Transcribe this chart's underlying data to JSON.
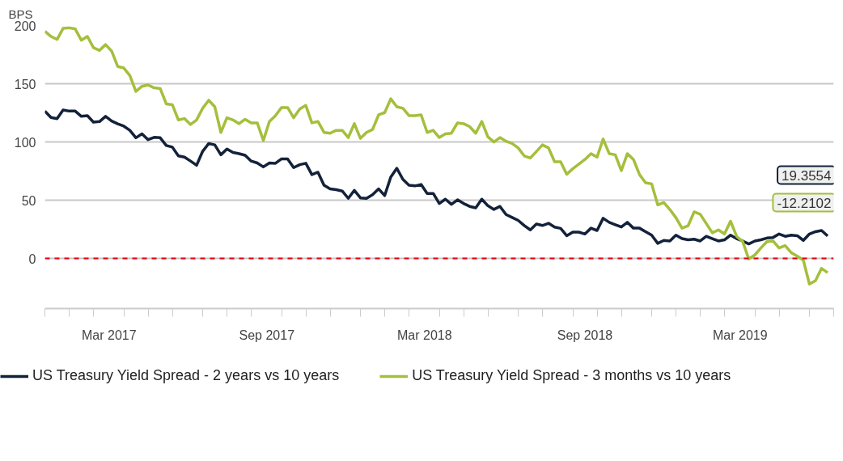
{
  "chart_data": {
    "type": "line",
    "ylabel": "BPS",
    "x": [
      "2016-12-30",
      "2017-01-06",
      "2017-01-13",
      "2017-01-20",
      "2017-01-27",
      "2017-02-03",
      "2017-02-10",
      "2017-02-17",
      "2017-02-24",
      "2017-03-03",
      "2017-03-10",
      "2017-03-17",
      "2017-03-24",
      "2017-03-31",
      "2017-04-07",
      "2017-04-14",
      "2017-04-21",
      "2017-04-28",
      "2017-05-05",
      "2017-05-12",
      "2017-05-19",
      "2017-05-26",
      "2017-06-02",
      "2017-06-09",
      "2017-06-16",
      "2017-06-23",
      "2017-06-30",
      "2017-07-07",
      "2017-07-14",
      "2017-07-21",
      "2017-07-28",
      "2017-08-04",
      "2017-08-11",
      "2017-08-18",
      "2017-08-25",
      "2017-09-01",
      "2017-09-08",
      "2017-09-15",
      "2017-09-22",
      "2017-09-29",
      "2017-10-06",
      "2017-10-13",
      "2017-10-20",
      "2017-10-27",
      "2017-11-03",
      "2017-11-10",
      "2017-11-17",
      "2017-11-24",
      "2017-12-01",
      "2017-12-08",
      "2017-12-15",
      "2017-12-22",
      "2017-12-29",
      "2018-01-05",
      "2018-01-12",
      "2018-01-19",
      "2018-01-26",
      "2018-02-02",
      "2018-02-09",
      "2018-02-16",
      "2018-02-23",
      "2018-03-02",
      "2018-03-09",
      "2018-03-16",
      "2018-03-23",
      "2018-03-30",
      "2018-04-06",
      "2018-04-13",
      "2018-04-20",
      "2018-04-27",
      "2018-05-04",
      "2018-05-11",
      "2018-05-18",
      "2018-05-25",
      "2018-06-01",
      "2018-06-08",
      "2018-06-15",
      "2018-06-22",
      "2018-06-29",
      "2018-07-06",
      "2018-07-13",
      "2018-07-20",
      "2018-07-27",
      "2018-08-03",
      "2018-08-10",
      "2018-08-17",
      "2018-08-24",
      "2018-08-31",
      "2018-09-07",
      "2018-09-14",
      "2018-09-21",
      "2018-09-28",
      "2018-10-05",
      "2018-10-12",
      "2018-10-19",
      "2018-10-26",
      "2018-11-02",
      "2018-11-09",
      "2018-11-16",
      "2018-11-23",
      "2018-11-30",
      "2018-12-07",
      "2018-12-14",
      "2018-12-21",
      "2018-12-28",
      "2019-01-04",
      "2019-01-11",
      "2019-01-18",
      "2019-01-25",
      "2019-02-01",
      "2019-02-08",
      "2019-02-15",
      "2019-02-22",
      "2019-03-01",
      "2019-03-08",
      "2019-03-15",
      "2019-03-22",
      "2019-03-29",
      "2019-04-05",
      "2019-04-12",
      "2019-04-19",
      "2019-04-26",
      "2019-05-03",
      "2019-05-10",
      "2019-05-17",
      "2019-05-24",
      "2019-05-31",
      "2019-06-07",
      "2019-06-14",
      "2019-06-21"
    ],
    "series": [
      {
        "name": "US Treasury Yield Spread - 2 years vs 10 years",
        "color": "#13223a",
        "values": [
          126.5,
          121,
          120,
          127.5,
          126.5,
          126.5,
          122,
          122.6,
          117,
          117.5,
          122,
          118,
          115.6,
          113.6,
          110,
          103.6,
          107,
          102,
          104,
          103.6,
          97,
          95.6,
          88,
          87,
          83.6,
          80,
          92,
          98.7,
          97.5,
          89,
          94,
          91,
          90,
          88.6,
          83.6,
          82,
          78.6,
          82,
          81.7,
          85.5,
          85.5,
          78,
          80.5,
          81.7,
          72,
          74,
          62.9,
          59.7,
          59,
          57.9,
          51.6,
          58.5,
          52,
          51.6,
          54.7,
          59.7,
          54,
          69.8,
          77.4,
          67.9,
          62.9,
          62.3,
          63.5,
          55.8,
          55.8,
          47.2,
          50.9,
          46.5,
          50.3,
          47.2,
          44.7,
          43.4,
          50.9,
          45.3,
          42.1,
          44.7,
          37.7,
          35.2,
          32.7,
          28.3,
          24.5,
          29.6,
          28.3,
          30.2,
          27,
          25.8,
          19.5,
          22.6,
          22.6,
          21,
          26,
          24,
          34.5,
          31,
          29,
          27,
          31,
          26,
          26,
          23,
          20,
          13,
          15.5,
          15,
          20,
          17,
          16,
          16.5,
          15,
          19,
          17,
          15,
          16,
          20,
          17,
          15,
          12.5,
          15,
          16,
          17.5,
          18,
          21,
          19,
          20,
          19.5,
          15.5,
          21,
          23,
          24,
          19.3554
        ]
      },
      {
        "name": "US Treasury Yield Spread - 3 months vs 10 years",
        "color": "#a4bf3c",
        "values": [
          195,
          190.6,
          188,
          197.5,
          198,
          197,
          187.4,
          190.6,
          181,
          178.6,
          183.6,
          178,
          164.8,
          163.5,
          157,
          143.4,
          147.8,
          149,
          146.5,
          145.9,
          132.7,
          132,
          118.9,
          120.1,
          115,
          118.9,
          128.9,
          135.8,
          130.2,
          108.2,
          120.8,
          118.9,
          115.7,
          119.5,
          116.4,
          116.4,
          101.3,
          117.6,
          122.6,
          129.6,
          129.6,
          120.8,
          128.3,
          131.4,
          116.4,
          117.6,
          108.2,
          107.5,
          110,
          110,
          103.8,
          115.7,
          103.1,
          108.2,
          110.7,
          123.3,
          125.2,
          137.1,
          130.2,
          128.9,
          122.6,
          122.6,
          123.3,
          108.2,
          110,
          103.8,
          106.9,
          107.5,
          116.4,
          115.7,
          113.2,
          107.5,
          117.6,
          104.4,
          99.9,
          103.8,
          100.6,
          98.7,
          94.9,
          88,
          86.2,
          91.8,
          97.5,
          94.9,
          83,
          83,
          72.3,
          77,
          81,
          85,
          90,
          87,
          102.5,
          90,
          89,
          75.5,
          90,
          85,
          72,
          65,
          64,
          46,
          48,
          42,
          35,
          26,
          28,
          40,
          38,
          30,
          22,
          24.5,
          21,
          32,
          19,
          14.5,
          -0.5,
          3,
          9,
          14.5,
          15,
          9,
          11,
          5,
          2,
          -1.5,
          -22,
          -19,
          -8.5,
          -12.2102
        ]
      }
    ],
    "annotations": [
      "19.3554",
      "-12.2102"
    ],
    "xlim": [
      "2016-12-30",
      "2019-06-28"
    ],
    "xticks": [
      {
        "value": "2016-12-30",
        "label": null
      },
      {
        "value": "2017-01-27",
        "label": null
      },
      {
        "value": "2017-02-24",
        "label": null
      },
      {
        "value": "2017-03-14",
        "label": "Mar 2017"
      },
      {
        "value": "2017-03-31",
        "label": null
      },
      {
        "value": "2017-04-28",
        "label": null
      },
      {
        "value": "2017-05-26",
        "label": null
      },
      {
        "value": "2017-06-30",
        "label": null
      },
      {
        "value": "2017-07-28",
        "label": null
      },
      {
        "value": "2017-08-25",
        "label": null
      },
      {
        "value": "2017-09-12",
        "label": "Sep 2017"
      },
      {
        "value": "2017-09-29",
        "label": null
      },
      {
        "value": "2017-10-27",
        "label": null
      },
      {
        "value": "2017-11-24",
        "label": null
      },
      {
        "value": "2017-12-29",
        "label": null
      },
      {
        "value": "2018-01-26",
        "label": null
      },
      {
        "value": "2018-02-23",
        "label": null
      },
      {
        "value": "2018-03-13",
        "label": "Mar 2018"
      },
      {
        "value": "2018-03-30",
        "label": null
      },
      {
        "value": "2018-04-27",
        "label": null
      },
      {
        "value": "2018-05-25",
        "label": null
      },
      {
        "value": "2018-06-29",
        "label": null
      },
      {
        "value": "2018-07-27",
        "label": null
      },
      {
        "value": "2018-08-31",
        "label": null
      },
      {
        "value": "2018-09-14",
        "label": "Sep 2018"
      },
      {
        "value": "2018-09-28",
        "label": null
      },
      {
        "value": "2018-10-26",
        "label": null
      },
      {
        "value": "2018-11-30",
        "label": null
      },
      {
        "value": "2018-12-28",
        "label": null
      },
      {
        "value": "2019-01-25",
        "label": null
      },
      {
        "value": "2019-02-22",
        "label": null
      },
      {
        "value": "2019-03-12",
        "label": "Mar 2019"
      },
      {
        "value": "2019-03-29",
        "label": null
      },
      {
        "value": "2019-04-26",
        "label": null
      },
      {
        "value": "2019-05-31",
        "label": null
      },
      {
        "value": "2019-06-28",
        "label": null
      }
    ],
    "ylim": [
      -43,
      200
    ],
    "yticks": [
      0,
      50,
      100,
      150,
      200
    ],
    "ref_lines": [
      {
        "axis": "y",
        "value": 0,
        "color": "#e8000b",
        "line_style": "dashed"
      }
    ],
    "grid": "y",
    "legend": "bottom",
    "line_style": "solid",
    "marker": "none"
  }
}
